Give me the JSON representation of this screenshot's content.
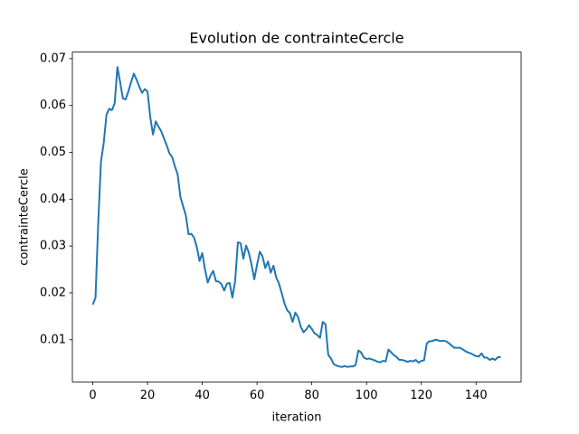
{
  "chart_data": {
    "type": "line",
    "title": "Evolution de contrainteCercle",
    "x_label": "iteration",
    "y_label": "contrainteCercle",
    "x": [
      0,
      1,
      2,
      3,
      4,
      5,
      6,
      7,
      8,
      9,
      10,
      11,
      12,
      13,
      14,
      15,
      16,
      17,
      18,
      19,
      20,
      21,
      22,
      23,
      24,
      25,
      26,
      27,
      28,
      29,
      30,
      31,
      32,
      33,
      34,
      35,
      36,
      37,
      38,
      39,
      40,
      41,
      42,
      43,
      44,
      45,
      46,
      47,
      48,
      49,
      50,
      51,
      52,
      53,
      54,
      55,
      56,
      57,
      58,
      59,
      60,
      61,
      62,
      63,
      64,
      65,
      66,
      67,
      68,
      69,
      70,
      71,
      72,
      73,
      74,
      75,
      76,
      77,
      78,
      79,
      80,
      81,
      82,
      83,
      84,
      85,
      86,
      87,
      88,
      89,
      90,
      91,
      92,
      93,
      94,
      95,
      96,
      97,
      98,
      99,
      100,
      101,
      102,
      103,
      104,
      105,
      106,
      107,
      108,
      109,
      110,
      111,
      112,
      113,
      114,
      115,
      116,
      117,
      118,
      119,
      120,
      121,
      122,
      123,
      124,
      125,
      126,
      127,
      128,
      129,
      130,
      131,
      132,
      133,
      134,
      135,
      136,
      137,
      138,
      139,
      140,
      141,
      142,
      143,
      144,
      145,
      146,
      147,
      148,
      149
    ],
    "values": [
      0.0175,
      0.019,
      0.035,
      0.048,
      0.052,
      0.058,
      0.0593,
      0.059,
      0.0605,
      0.0682,
      0.065,
      0.0615,
      0.0613,
      0.063,
      0.065,
      0.0668,
      0.0655,
      0.064,
      0.0627,
      0.0635,
      0.063,
      0.0575,
      0.0538,
      0.0566,
      0.0555,
      0.0545,
      0.053,
      0.0515,
      0.0498,
      0.049,
      0.047,
      0.0453,
      0.0405,
      0.0385,
      0.0365,
      0.0325,
      0.0326,
      0.0318,
      0.0298,
      0.0268,
      0.0285,
      0.025,
      0.0222,
      0.0237,
      0.0247,
      0.0225,
      0.0224,
      0.0219,
      0.0205,
      0.022,
      0.0221,
      0.019,
      0.0225,
      0.0308,
      0.0306,
      0.0273,
      0.0301,
      0.0286,
      0.026,
      0.0229,
      0.026,
      0.0288,
      0.0278,
      0.0253,
      0.0267,
      0.0243,
      0.0258,
      0.0233,
      0.022,
      0.02,
      0.0178,
      0.0163,
      0.0157,
      0.0138,
      0.0158,
      0.0148,
      0.0127,
      0.0116,
      0.0122,
      0.0131,
      0.0123,
      0.0114,
      0.011,
      0.0104,
      0.0138,
      0.0133,
      0.0068,
      0.006,
      0.0048,
      0.0045,
      0.0043,
      0.0042,
      0.0044,
      0.0042,
      0.0043,
      0.0043,
      0.0046,
      0.0077,
      0.0073,
      0.0062,
      0.0059,
      0.006,
      0.0058,
      0.0056,
      0.0053,
      0.0052,
      0.0055,
      0.0054,
      0.0079,
      0.0073,
      0.0067,
      0.0063,
      0.0057,
      0.0057,
      0.0055,
      0.0053,
      0.0055,
      0.0054,
      0.0057,
      0.0051,
      0.0055,
      0.0056,
      0.0092,
      0.0097,
      0.0097,
      0.01,
      0.0099,
      0.0097,
      0.0098,
      0.0097,
      0.0093,
      0.0088,
      0.0083,
      0.0083,
      0.0083,
      0.008,
      0.0076,
      0.0073,
      0.0071,
      0.0068,
      0.0065,
      0.0064,
      0.0071,
      0.0062,
      0.0062,
      0.0057,
      0.006,
      0.0057,
      0.0063,
      0.0063
    ],
    "color": "#1f77b4",
    "xlim": [
      -7.45,
      156.45
    ],
    "xticks": [
      0,
      20,
      40,
      60,
      80,
      100,
      120,
      140
    ],
    "ylim": [
      0.001,
      0.0714
    ],
    "yticks": [
      0.01,
      0.02,
      0.03,
      0.04,
      0.05,
      0.06,
      0.07
    ]
  }
}
